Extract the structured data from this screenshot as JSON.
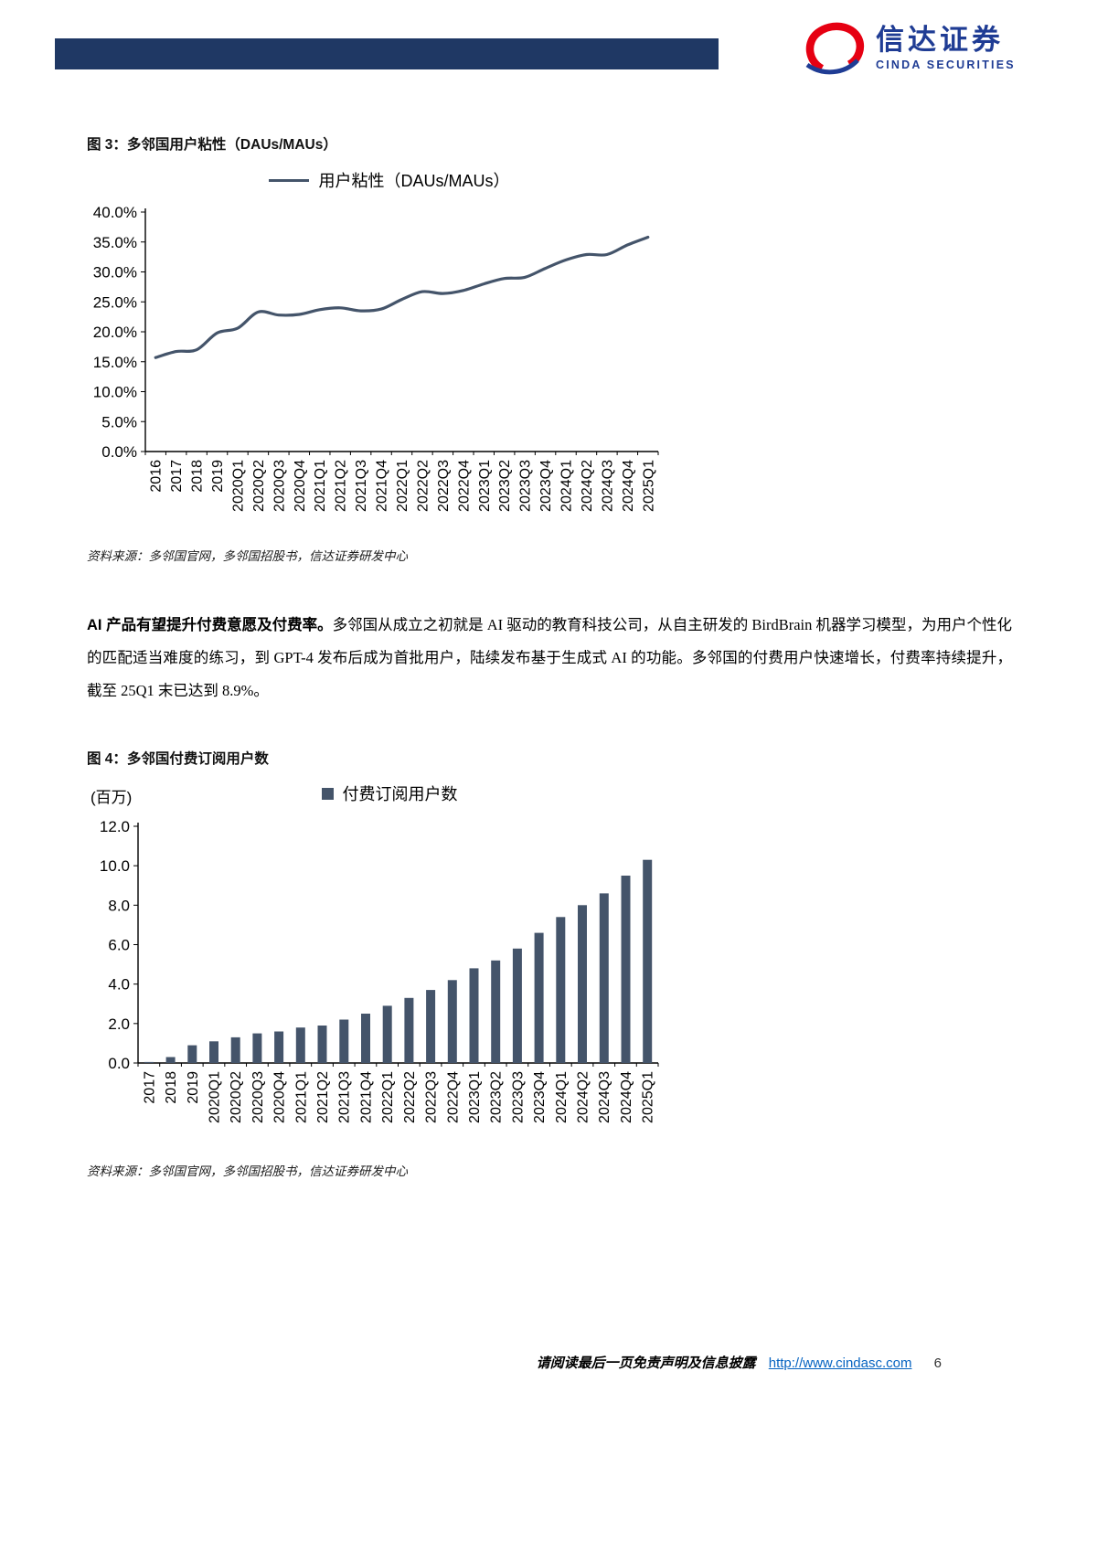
{
  "header": {
    "brand_cn": "信达证券",
    "brand_en": "CINDA SECURITIES",
    "bar_color": "#1F3864",
    "brand_red": "#E60012",
    "brand_blue": "#1F3C94"
  },
  "figure3": {
    "title": "图 3：多邻国用户粘性（DAUs/MAUs）",
    "source": "资料来源：多邻国官网，多邻国招股书，信达证券研发中心"
  },
  "paragraph": {
    "lead_bold": "AI 产品有望提升付费意愿及付费率。",
    "body": "多邻国从成立之初就是 AI 驱动的教育科技公司，从自主研发的 BirdBrain 机器学习模型，为用户个性化的匹配适当难度的练习，到 GPT-4 发布后成为首批用户，陆续发布基于生成式 AI 的功能。多邻国的付费用户快速增长，付费率持续提升，截至 25Q1 末已达到 8.9%。"
  },
  "figure4": {
    "title": "图 4：多邻国付费订阅用户数",
    "source": "资料来源：多邻国官网，多邻国招股书，信达证券研发中心"
  },
  "footer": {
    "disclaimer": "请阅读最后一页免责声明及信息披露",
    "url": "http://www.cindasc.com",
    "page_number": "6",
    "link_color": "#0563C1"
  },
  "chart_data": [
    {
      "type": "line",
      "title": "多邻国用户粘性（DAUs/MAUs）",
      "legend_position": "top",
      "x": [
        "2016",
        "2017",
        "2018",
        "2019",
        "2020Q1",
        "2020Q2",
        "2020Q3",
        "2020Q4",
        "2021Q1",
        "2021Q2",
        "2021Q3",
        "2021Q4",
        "2022Q1",
        "2022Q2",
        "2022Q3",
        "2022Q4",
        "2023Q1",
        "2023Q2",
        "2023Q3",
        "2023Q4",
        "2024Q1",
        "2024Q2",
        "2024Q3",
        "2024Q4",
        "2025Q1"
      ],
      "series": [
        {
          "name": "用户粘性（DAUs/MAUs）",
          "values": [
            15.7,
            16.7,
            17.0,
            19.8,
            20.6,
            23.3,
            22.8,
            22.9,
            23.7,
            24.0,
            23.5,
            23.8,
            25.4,
            26.7,
            26.4,
            26.9,
            28.0,
            28.9,
            29.1,
            30.6,
            32.0,
            32.9,
            32.9,
            34.5,
            35.8
          ]
        }
      ],
      "ylim": [
        0,
        40
      ],
      "ytick_step": 5,
      "ytick_format": "percent1",
      "grid": false,
      "color": "#44546A"
    },
    {
      "type": "bar",
      "title": "多邻国付费订阅用户数",
      "legend": [
        "付费订阅用户数"
      ],
      "unit_label": "(百万)",
      "x": [
        "2017",
        "2018",
        "2019",
        "2020Q1",
        "2020Q2",
        "2020Q3",
        "2020Q4",
        "2021Q1",
        "2021Q2",
        "2021Q3",
        "2021Q4",
        "2022Q1",
        "2022Q2",
        "2022Q3",
        "2022Q4",
        "2023Q1",
        "2023Q2",
        "2023Q3",
        "2023Q4",
        "2024Q1",
        "2024Q2",
        "2024Q3",
        "2024Q4",
        "2025Q1"
      ],
      "values": [
        0.05,
        0.3,
        0.9,
        1.1,
        1.3,
        1.5,
        1.6,
        1.8,
        1.9,
        2.2,
        2.5,
        2.9,
        3.3,
        3.7,
        4.2,
        4.8,
        5.2,
        5.8,
        6.6,
        7.4,
        8.0,
        8.6,
        9.5,
        10.3
      ],
      "ylim": [
        0,
        12
      ],
      "ytick_step": 2,
      "ytick_format": "fixed1",
      "grid": false,
      "color": "#44546A"
    }
  ]
}
